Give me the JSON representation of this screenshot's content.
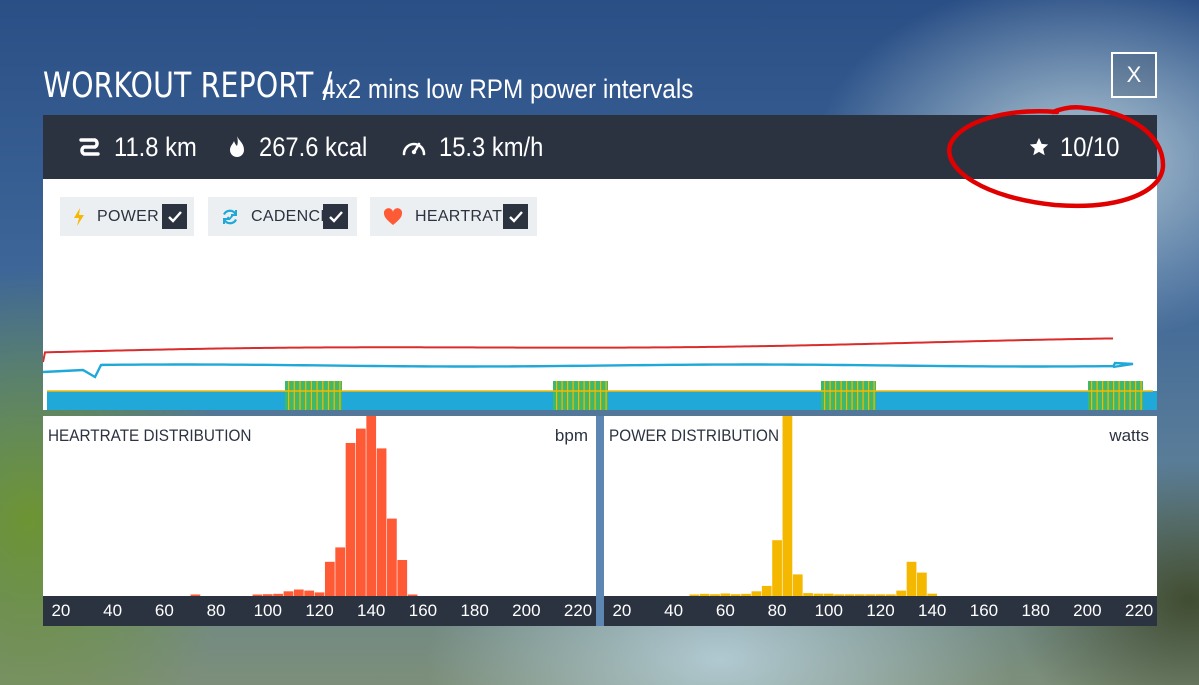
{
  "header": {
    "title": "WORKOUT REPORT /",
    "subtitle": "4x2 mins low RPM power intervals",
    "close_label": "X"
  },
  "stats": {
    "distance": "11.8 km",
    "calories": "267.6 kcal",
    "speed": "15.3 km/h",
    "rating": "10/10",
    "icons": [
      "route-icon",
      "flame-icon",
      "speedometer-icon",
      "star-icon"
    ]
  },
  "legend": [
    {
      "label": "POWER",
      "checked": true,
      "icon": "lightning-icon",
      "color": "#f5b800"
    },
    {
      "label": "CADENCE",
      "checked": true,
      "icon": "cadence-icon",
      "color": "#1fa8d8"
    },
    {
      "label": "HEARTRATE",
      "checked": true,
      "icon": "heart-icon",
      "color": "#ff5a36"
    }
  ],
  "colors": {
    "panel_dark": "#2b3240",
    "heartrate": "#ff5a36",
    "heartrate_line": "#d92c2c",
    "cadence": "#1fa8d8",
    "power": "#f5b800",
    "interval": "#3fb86a",
    "divider": "#5d86b3",
    "annotation": "#e00000"
  },
  "chart_data": [
    {
      "type": "bar",
      "title": "HEARTRATE DISTRIBUTION",
      "unit": "bpm",
      "xlim": [
        15,
        225
      ],
      "x_ticks": [
        20,
        40,
        60,
        80,
        100,
        120,
        140,
        160,
        180,
        200,
        220
      ],
      "bin_width": 4,
      "bins": [
        {
          "x": 72,
          "v": 0.3
        },
        {
          "x": 96,
          "v": 0.4
        },
        {
          "x": 100,
          "v": 1
        },
        {
          "x": 104,
          "v": 1.2
        },
        {
          "x": 108,
          "v": 2.6
        },
        {
          "x": 112,
          "v": 3.6
        },
        {
          "x": 116,
          "v": 3
        },
        {
          "x": 120,
          "v": 2
        },
        {
          "x": 124,
          "v": 19
        },
        {
          "x": 128,
          "v": 27
        },
        {
          "x": 132,
          "v": 85
        },
        {
          "x": 136,
          "v": 93
        },
        {
          "x": 140,
          "v": 100
        },
        {
          "x": 144,
          "v": 82
        },
        {
          "x": 148,
          "v": 43
        },
        {
          "x": 152,
          "v": 20
        },
        {
          "x": 156,
          "v": 0.8
        }
      ]
    },
    {
      "type": "bar",
      "title": "POWER DISTRIBUTION",
      "unit": "watts",
      "xlim": [
        15,
        225
      ],
      "x_ticks": [
        20,
        40,
        60,
        80,
        100,
        120,
        140,
        160,
        180,
        200,
        220
      ],
      "bin_width": 4,
      "bins": [
        {
          "x": 48,
          "v": 0.6
        },
        {
          "x": 52,
          "v": 1.2
        },
        {
          "x": 56,
          "v": 1
        },
        {
          "x": 60,
          "v": 1.4
        },
        {
          "x": 64,
          "v": 1
        },
        {
          "x": 68,
          "v": 1.2
        },
        {
          "x": 72,
          "v": 2.6
        },
        {
          "x": 76,
          "v": 5.6
        },
        {
          "x": 80,
          "v": 31
        },
        {
          "x": 84,
          "v": 100
        },
        {
          "x": 88,
          "v": 12
        },
        {
          "x": 92,
          "v": 1.6
        },
        {
          "x": 96,
          "v": 1.3
        },
        {
          "x": 100,
          "v": 1.3
        },
        {
          "x": 104,
          "v": 0.9
        },
        {
          "x": 108,
          "v": 0.9
        },
        {
          "x": 112,
          "v": 0.9
        },
        {
          "x": 116,
          "v": 0.9
        },
        {
          "x": 120,
          "v": 0.9
        },
        {
          "x": 124,
          "v": 0.9
        },
        {
          "x": 128,
          "v": 3
        },
        {
          "x": 132,
          "v": 19
        },
        {
          "x": 136,
          "v": 13
        },
        {
          "x": 140,
          "v": 1.3
        }
      ]
    }
  ]
}
